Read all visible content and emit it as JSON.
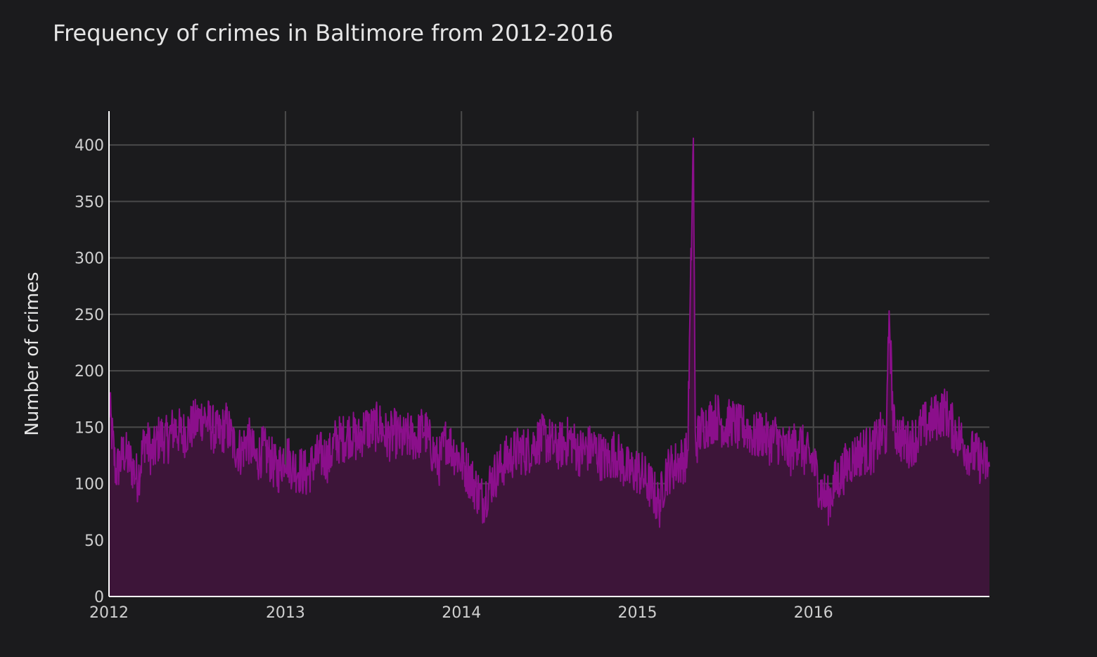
{
  "chart_data": {
    "type": "area",
    "title": "Frequency of crimes in Baltimore from 2012-2016",
    "xlabel": "",
    "ylabel": "Number of crimes",
    "x_range": [
      "2012-01-01",
      "2016-12-31"
    ],
    "ylim": [
      0,
      430
    ],
    "x_ticks": [
      "2012",
      "2013",
      "2014",
      "2015",
      "2016"
    ],
    "y_ticks": [
      0,
      50,
      100,
      150,
      200,
      250,
      300,
      350,
      400
    ],
    "grid": true,
    "legend": "none",
    "colors": {
      "line": "#8b0f8b",
      "fill": "#3d1539",
      "background": "#1b1b1d",
      "grid": "#4a4a4a"
    },
    "series": [
      {
        "x": [
          "2012-01-01",
          "2012-01-15",
          "2012-02-01",
          "2012-02-15",
          "2012-03-01",
          "2012-03-15",
          "2012-04-01",
          "2012-04-15",
          "2012-05-01",
          "2012-05-15",
          "2012-06-01",
          "2012-06-15",
          "2012-07-01",
          "2012-07-15",
          "2012-08-01",
          "2012-08-15",
          "2012-09-01",
          "2012-09-15",
          "2012-10-01",
          "2012-10-15",
          "2012-11-01",
          "2012-11-15",
          "2012-12-01",
          "2012-12-15",
          "2013-01-01",
          "2013-01-15",
          "2013-02-01",
          "2013-02-15",
          "2013-03-01",
          "2013-03-15",
          "2013-04-01",
          "2013-04-15",
          "2013-05-01",
          "2013-05-15",
          "2013-06-01",
          "2013-06-15",
          "2013-07-01",
          "2013-07-15",
          "2013-08-01",
          "2013-08-15",
          "2013-09-01",
          "2013-09-15",
          "2013-10-01",
          "2013-10-15",
          "2013-11-01",
          "2013-11-15",
          "2013-12-01",
          "2013-12-15",
          "2014-01-01",
          "2014-01-15",
          "2014-02-01",
          "2014-02-15",
          "2014-03-01",
          "2014-03-15",
          "2014-04-01",
          "2014-04-15",
          "2014-05-01",
          "2014-05-15",
          "2014-06-01",
          "2014-06-15",
          "2014-07-01",
          "2014-07-15",
          "2014-08-01",
          "2014-08-15",
          "2014-09-01",
          "2014-09-15",
          "2014-10-01",
          "2014-10-15",
          "2014-11-01",
          "2014-11-15",
          "2014-12-01",
          "2014-12-15",
          "2015-01-01",
          "2015-01-15",
          "2015-02-01",
          "2015-02-15",
          "2015-03-01",
          "2015-03-15",
          "2015-04-01",
          "2015-04-15",
          "2015-04-27",
          "2015-05-01",
          "2015-05-15",
          "2015-06-01",
          "2015-06-15",
          "2015-07-01",
          "2015-07-15",
          "2015-08-01",
          "2015-08-15",
          "2015-09-01",
          "2015-09-15",
          "2015-10-01",
          "2015-10-15",
          "2015-11-01",
          "2015-11-15",
          "2015-12-01",
          "2015-12-15",
          "2016-01-01",
          "2016-01-15",
          "2016-02-01",
          "2016-02-15",
          "2016-03-01",
          "2016-03-15",
          "2016-04-01",
          "2016-04-15",
          "2016-05-01",
          "2016-05-15",
          "2016-06-01",
          "2016-06-06",
          "2016-06-15",
          "2016-07-01",
          "2016-07-15",
          "2016-08-01",
          "2016-08-15",
          "2016-09-01",
          "2016-09-15",
          "2016-10-01",
          "2016-10-15",
          "2016-11-01",
          "2016-11-15",
          "2016-12-01",
          "2016-12-15",
          "2016-12-31"
        ],
        "y": [
          172,
          110,
          128,
          118,
          104,
          140,
          125,
          142,
          138,
          150,
          143,
          148,
          155,
          160,
          150,
          142,
          152,
          135,
          128,
          140,
          120,
          130,
          122,
          110,
          128,
          115,
          112,
          108,
          120,
          125,
          122,
          138,
          140,
          145,
          138,
          150,
          148,
          152,
          140,
          145,
          138,
          142,
          140,
          150,
          130,
          118,
          140,
          130,
          120,
          110,
          95,
          85,
          100,
          110,
          120,
          125,
          130,
          128,
          135,
          140,
          138,
          132,
          135,
          140,
          128,
          130,
          132,
          125,
          120,
          128,
          118,
          110,
          112,
          105,
          95,
          80,
          110,
          115,
          120,
          125,
          406,
          135,
          150,
          155,
          160,
          150,
          155,
          148,
          150,
          140,
          145,
          138,
          142,
          130,
          128,
          140,
          125,
          120,
          95,
          85,
          100,
          110,
          120,
          125,
          130,
          128,
          140,
          145,
          253,
          150,
          140,
          135,
          140,
          150,
          155,
          160,
          165,
          150,
          140,
          130,
          125,
          120,
          115
        ]
      }
    ]
  }
}
